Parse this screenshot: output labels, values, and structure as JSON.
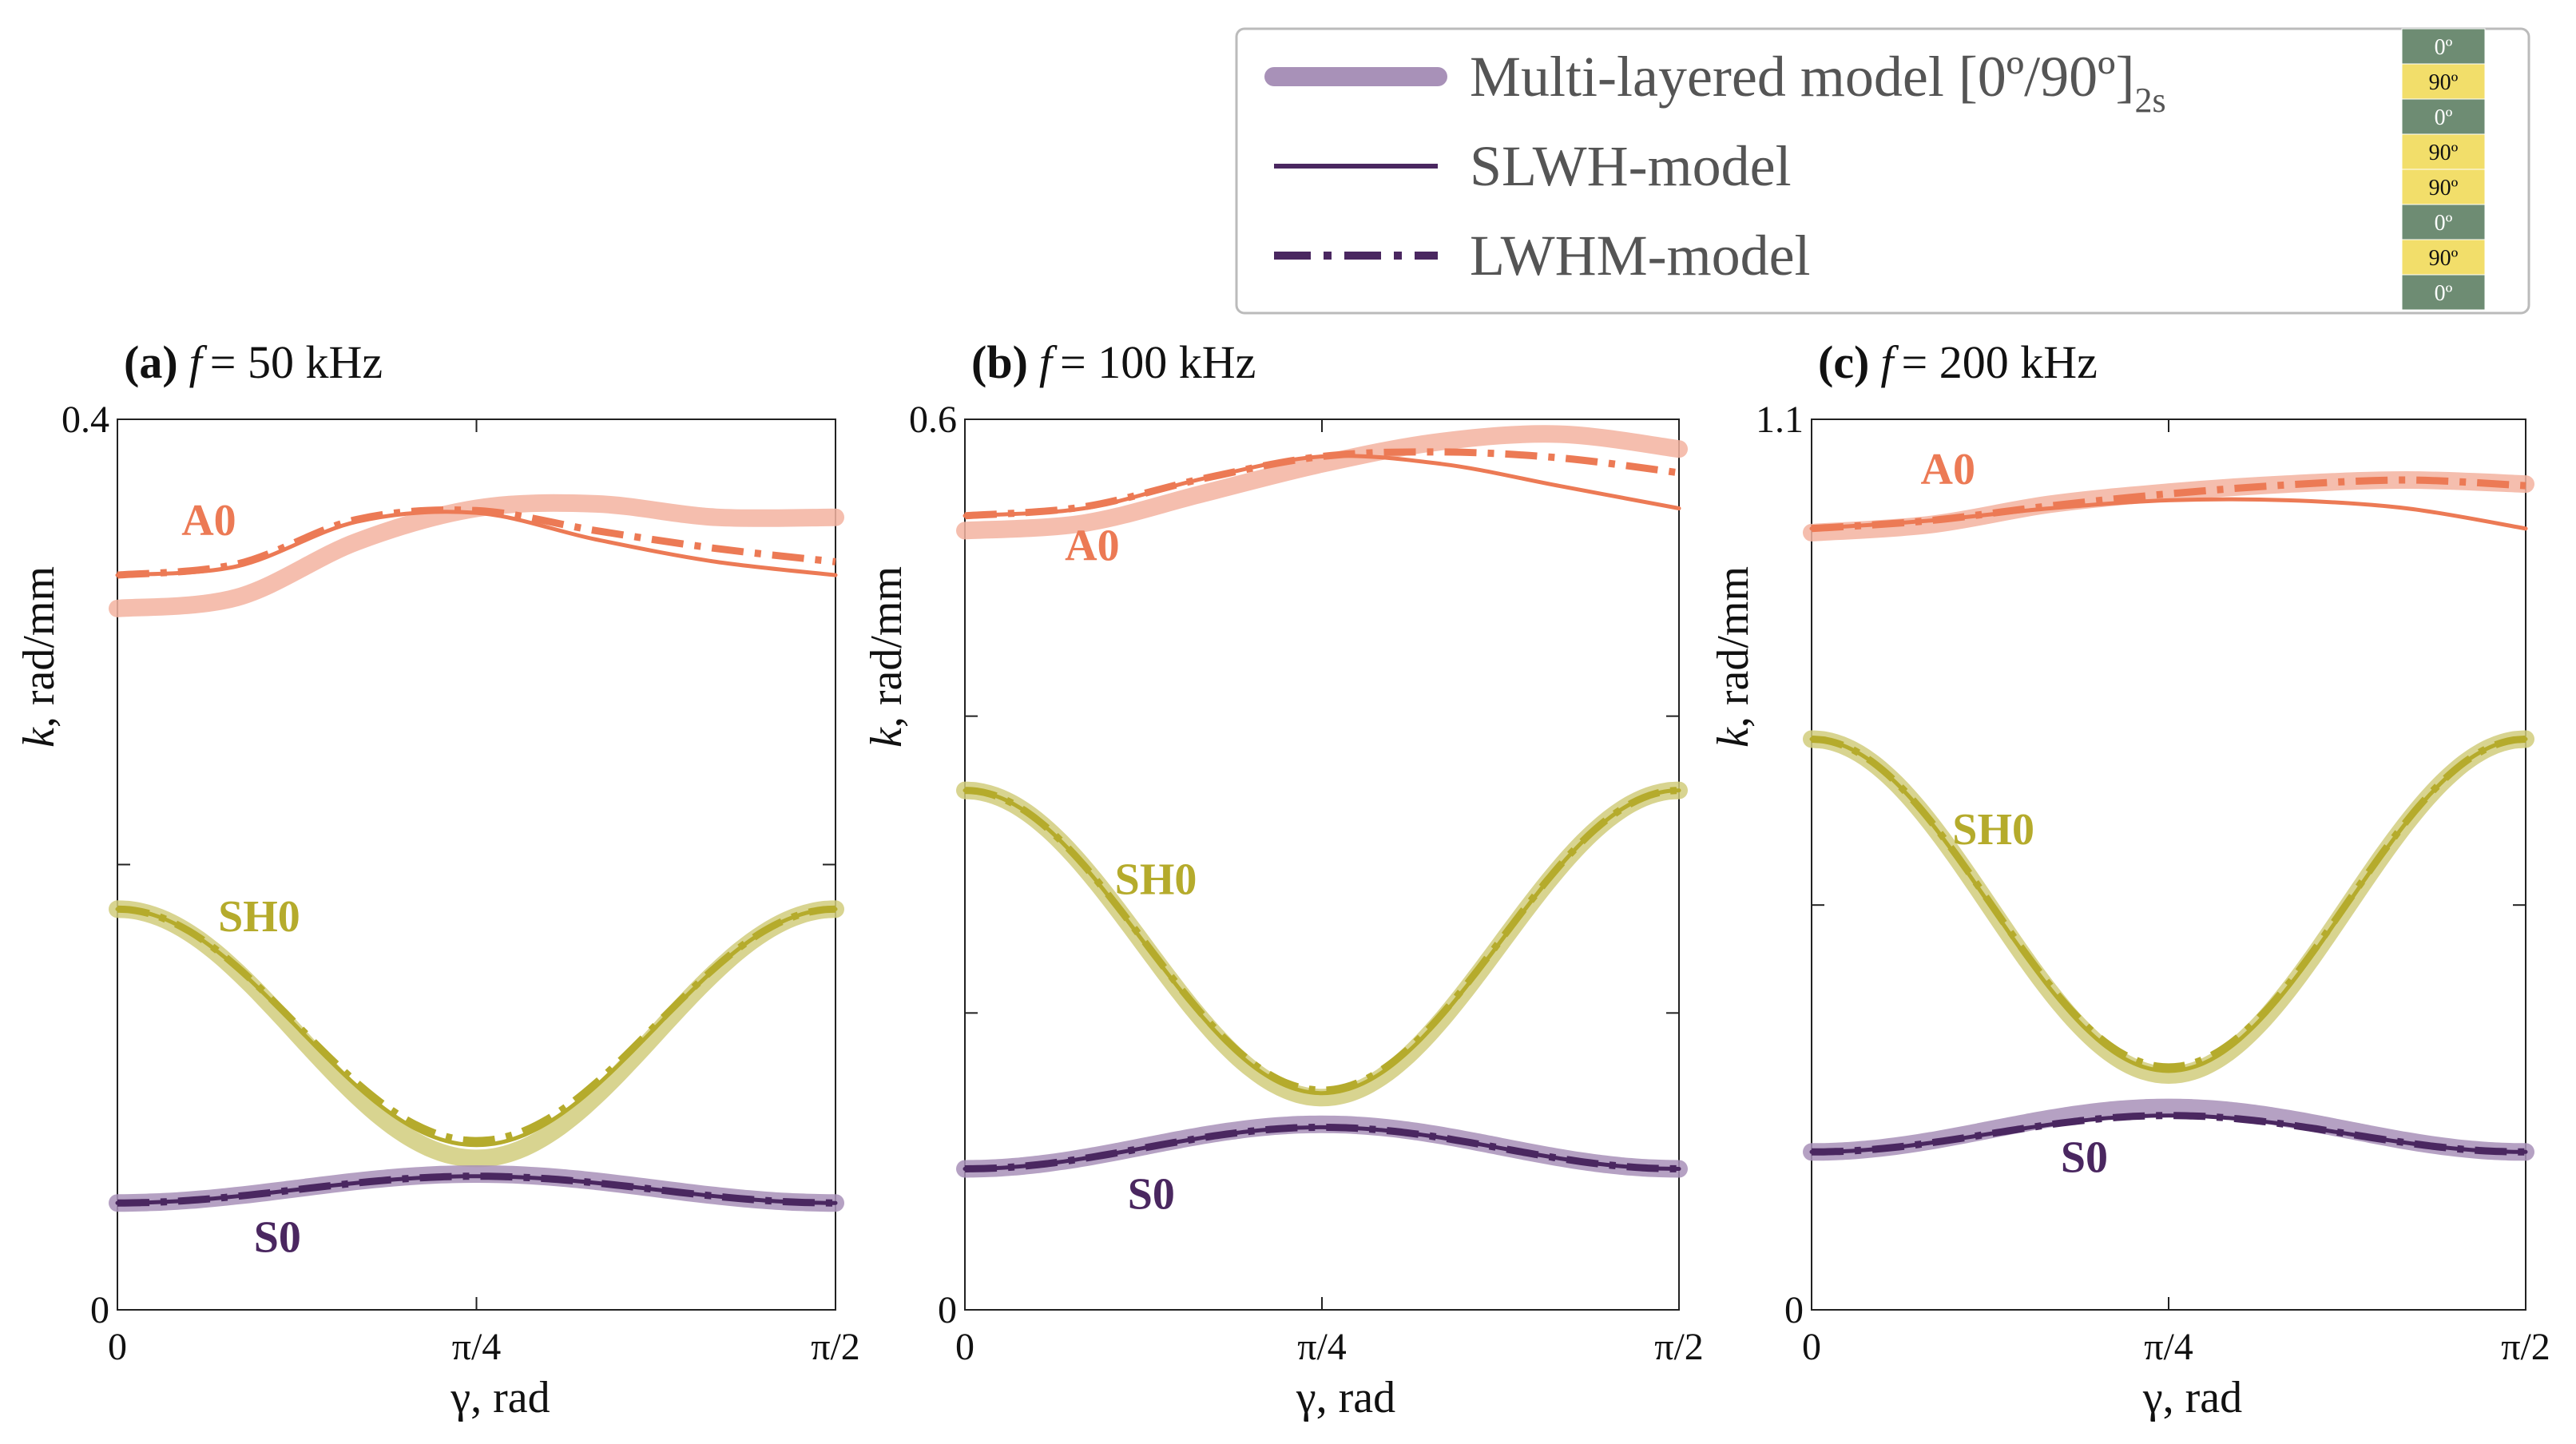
{
  "colors": {
    "A0": "#ec7a55",
    "A0_light": "#f3b3a0",
    "SH0": "#b5ab2c",
    "SH0_light": "#d1cc7d",
    "S0": "#4a2760",
    "S0_light": "#a891b8",
    "layer_0": "#6e8c73",
    "layer_90": "#f2de6a"
  },
  "legend": {
    "items": [
      {
        "label": "Multi-layered model [0º/90º]",
        "subscript": "2s",
        "style": "thick"
      },
      {
        "label": "SLWH-model",
        "style": "solid"
      },
      {
        "label": "LWHM-model",
        "style": "dashdot"
      }
    ],
    "layup": [
      "0º",
      "90º",
      "0º",
      "90º",
      "90º",
      "0º",
      "90º",
      "0º"
    ]
  },
  "chart_data": [
    {
      "type": "line",
      "panel": "(a)",
      "title_rest": "= 50 kHz",
      "title_f": "f",
      "xlabel": "γ, rad",
      "ylabel_k": "k",
      "ylabel_rest": ", rad/mm",
      "xlim": [
        0,
        1.5708
      ],
      "ylim": [
        0,
        0.4
      ],
      "xtick_labels": [
        "0",
        "π/4",
        "π/2"
      ],
      "ytick_labels": [
        "0",
        "0.4"
      ],
      "minor_yticks": [
        0.2
      ],
      "mode_labels": [
        {
          "text": "A0",
          "mode": "A0",
          "x": 0.2,
          "y": 0.348
        },
        {
          "text": "SH0",
          "mode": "SH0",
          "x": 0.31,
          "y": 0.17
        },
        {
          "text": "S0",
          "mode": "S0",
          "x": 0.35,
          "y": 0.026
        }
      ],
      "series": [
        {
          "mode": "A0",
          "model": "Multi-layered",
          "control": [
            0.315,
            0.32,
            0.345,
            0.36,
            0.362,
            0.356,
            0.356
          ]
        },
        {
          "mode": "A0",
          "model": "SLWH",
          "control": [
            0.33,
            0.334,
            0.354,
            0.358,
            0.346,
            0.336,
            0.33
          ]
        },
        {
          "mode": "A0",
          "model": "LWHM",
          "control": [
            0.33,
            0.335,
            0.355,
            0.359,
            0.35,
            0.342,
            0.336
          ]
        },
        {
          "mode": "SH0",
          "model": "Multi-layered",
          "control": [
            0.18,
            0.068
          ]
        },
        {
          "mode": "SH0",
          "model": "SLWH",
          "control": [
            0.18,
            0.074
          ]
        },
        {
          "mode": "SH0",
          "model": "LWHM",
          "control": [
            0.18,
            0.076
          ]
        },
        {
          "mode": "S0",
          "model": "Multi-layered",
          "control": [
            0.048,
            0.061
          ]
        },
        {
          "mode": "S0",
          "model": "SLWH",
          "control": [
            0.048,
            0.06
          ]
        },
        {
          "mode": "S0",
          "model": "LWHM",
          "control": [
            0.048,
            0.06
          ]
        }
      ]
    },
    {
      "type": "line",
      "panel": "(b)",
      "title_rest": "= 100 kHz",
      "title_f": "f",
      "xlabel": "γ, rad",
      "ylabel_k": "k",
      "ylabel_rest": ", rad/mm",
      "xlim": [
        0,
        1.5708
      ],
      "ylim": [
        0,
        0.6
      ],
      "xtick_labels": [
        "0",
        "π/4",
        "π/2"
      ],
      "ytick_labels": [
        "0",
        "0.6"
      ],
      "minor_yticks": [
        0.2,
        0.4
      ],
      "mode_labels": [
        {
          "text": "A0",
          "mode": "A0",
          "x": 0.28,
          "y": 0.505
        },
        {
          "text": "SH0",
          "mode": "SH0",
          "x": 0.42,
          "y": 0.28
        },
        {
          "text": "S0",
          "mode": "S0",
          "x": 0.41,
          "y": 0.068
        }
      ],
      "series": [
        {
          "mode": "A0",
          "model": "Multi-layered",
          "control": [
            0.525,
            0.53,
            0.55,
            0.57,
            0.585,
            0.59,
            0.58
          ]
        },
        {
          "mode": "A0",
          "model": "SLWH",
          "control": [
            0.535,
            0.54,
            0.56,
            0.575,
            0.57,
            0.555,
            0.54
          ]
        },
        {
          "mode": "A0",
          "model": "LWHM",
          "control": [
            0.535,
            0.541,
            0.56,
            0.575,
            0.578,
            0.574,
            0.564
          ]
        },
        {
          "mode": "SH0",
          "model": "Multi-layered",
          "control": [
            0.35,
            0.143
          ]
        },
        {
          "mode": "SH0",
          "model": "SLWH",
          "control": [
            0.35,
            0.146
          ]
        },
        {
          "mode": "SH0",
          "model": "LWHM",
          "control": [
            0.35,
            0.148
          ]
        },
        {
          "mode": "S0",
          "model": "Multi-layered",
          "control": [
            0.095,
            0.125
          ]
        },
        {
          "mode": "S0",
          "model": "SLWH",
          "control": [
            0.095,
            0.123
          ]
        },
        {
          "mode": "S0",
          "model": "LWHM",
          "control": [
            0.095,
            0.123
          ]
        }
      ]
    },
    {
      "type": "line",
      "panel": "(c)",
      "title_rest": "= 200 kHz",
      "title_f": "f",
      "xlabel": "γ, rad",
      "ylabel_k": "k",
      "ylabel_rest": ", rad/mm",
      "xlim": [
        0,
        1.5708
      ],
      "ylim": [
        0,
        1.1
      ],
      "xtick_labels": [
        "0",
        "π/4",
        "π/2"
      ],
      "ytick_labels": [
        "0",
        "1.1"
      ],
      "minor_yticks": [
        0.5
      ],
      "mode_labels": [
        {
          "text": "A0",
          "mode": "A0",
          "x": 0.3,
          "y": 1.02
        },
        {
          "text": "SH0",
          "mode": "SH0",
          "x": 0.4,
          "y": 0.575
        },
        {
          "text": "S0",
          "mode": "S0",
          "x": 0.6,
          "y": 0.17
        }
      ],
      "series": [
        {
          "mode": "A0",
          "model": "Multi-layered",
          "control": [
            0.96,
            0.97,
            0.995,
            1.01,
            1.02,
            1.025,
            1.02
          ]
        },
        {
          "mode": "A0",
          "model": "SLWH",
          "control": [
            0.965,
            0.975,
            0.99,
            1.0,
            1.0,
            0.99,
            0.965
          ]
        },
        {
          "mode": "A0",
          "model": "LWHM",
          "control": [
            0.965,
            0.975,
            0.993,
            1.008,
            1.019,
            1.025,
            1.018
          ]
        },
        {
          "mode": "SH0",
          "model": "Multi-layered",
          "control": [
            0.705,
            0.29
          ]
        },
        {
          "mode": "SH0",
          "model": "SLWH",
          "control": [
            0.705,
            0.295
          ]
        },
        {
          "mode": "SH0",
          "model": "LWHM",
          "control": [
            0.705,
            0.3
          ]
        },
        {
          "mode": "S0",
          "model": "Multi-layered",
          "control": [
            0.195,
            0.25
          ]
        },
        {
          "mode": "S0",
          "model": "SLWH",
          "control": [
            0.195,
            0.24
          ]
        },
        {
          "mode": "S0",
          "model": "LWHM",
          "control": [
            0.195,
            0.24
          ]
        }
      ]
    }
  ]
}
